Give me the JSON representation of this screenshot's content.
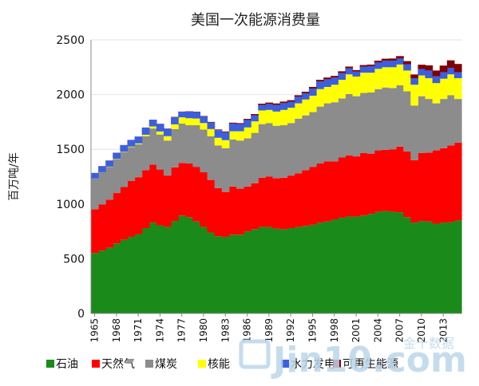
{
  "chart_data": {
    "type": "area",
    "title": "美国一次能源消费量",
    "ylabel": "百万吨/年",
    "ylim": [
      0,
      2500
    ],
    "yticks": [
      "0",
      "500",
      "1000",
      "1500",
      "2000",
      "2500"
    ],
    "x": [
      1965,
      1966,
      1967,
      1968,
      1969,
      1970,
      1971,
      1972,
      1973,
      1974,
      1975,
      1976,
      1977,
      1978,
      1979,
      1980,
      1981,
      1982,
      1983,
      1984,
      1985,
      1986,
      1987,
      1988,
      1989,
      1990,
      1991,
      1992,
      1993,
      1994,
      1995,
      1996,
      1997,
      1998,
      1999,
      2000,
      2001,
      2002,
      2003,
      2004,
      2005,
      2006,
      2007,
      2008,
      2009,
      2010,
      2011,
      2012,
      2013,
      2014,
      2015
    ],
    "xtick_labels": [
      "1965",
      "1968",
      "1971",
      "1974",
      "1977",
      "1980",
      "1983",
      "1986",
      "1989",
      "1992",
      "1995",
      "1998",
      "2001",
      "2004",
      "2007",
      "2010",
      "2013"
    ],
    "grid": true,
    "legend": "bottom",
    "stacked": true,
    "series": [
      {
        "name": "石油",
        "color": "#1a8a1a",
        "values": [
          552,
          575,
          600,
          640,
          675,
          700,
          725,
          780,
          830,
          805,
          790,
          845,
          895,
          880,
          840,
          790,
          740,
          705,
          700,
          720,
          720,
          750,
          770,
          790,
          790,
          775,
          770,
          780,
          790,
          800,
          810,
          830,
          840,
          860,
          875,
          885,
          885,
          895,
          910,
          930,
          935,
          930,
          925,
          880,
          830,
          845,
          840,
          820,
          830,
          835,
          850
        ]
      },
      {
        "name": "天然气",
        "color": "#ff0000",
        "values": [
          400,
          420,
          440,
          460,
          480,
          510,
          520,
          530,
          530,
          510,
          470,
          490,
          480,
          490,
          500,
          500,
          480,
          440,
          410,
          440,
          420,
          410,
          420,
          450,
          460,
          460,
          470,
          480,
          490,
          510,
          530,
          540,
          550,
          530,
          550,
          560,
          550,
          570,
          550,
          560,
          560,
          570,
          600,
          600,
          570,
          620,
          630,
          670,
          680,
          700,
          710
        ]
      },
      {
        "name": "煤炭",
        "color": "#8c8c8c",
        "values": [
          280,
          295,
          300,
          310,
          320,
          310,
          300,
          310,
          330,
          320,
          320,
          350,
          360,
          350,
          380,
          390,
          400,
          390,
          400,
          430,
          440,
          440,
          460,
          490,
          490,
          480,
          480,
          480,
          500,
          500,
          500,
          520,
          530,
          540,
          540,
          560,
          550,
          550,
          560,
          560,
          570,
          560,
          560,
          550,
          500,
          520,
          490,
          430,
          450,
          460,
          400
        ]
      },
      {
        "name": "核能",
        "color": "#ffff00",
        "values": [
          1,
          1,
          2,
          3,
          3,
          5,
          9,
          13,
          19,
          28,
          40,
          43,
          57,
          64,
          61,
          60,
          65,
          70,
          74,
          75,
          85,
          100,
          105,
          125,
          120,
          130,
          140,
          140,
          140,
          145,
          150,
          160,
          150,
          160,
          170,
          180,
          180,
          185,
          180,
          185,
          185,
          190,
          190,
          190,
          190,
          190,
          190,
          185,
          185,
          190,
          190
        ]
      },
      {
        "name": "水力发电",
        "color": "#3a5fe0",
        "values": [
          50,
          55,
          55,
          55,
          60,
          60,
          62,
          65,
          60,
          68,
          68,
          65,
          50,
          60,
          60,
          60,
          60,
          70,
          72,
          70,
          65,
          68,
          56,
          50,
          54,
          60,
          62,
          55,
          60,
          56,
          65,
          70,
          70,
          65,
          62,
          55,
          45,
          55,
          58,
          58,
          60,
          60,
          55,
          58,
          60,
          58,
          70,
          62,
          60,
          60,
          55
        ]
      },
      {
        "name": "可再生能源",
        "color": "#800000",
        "values": [
          1,
          1,
          1,
          1,
          1,
          1,
          1,
          1,
          2,
          2,
          2,
          3,
          3,
          3,
          3,
          4,
          5,
          6,
          7,
          8,
          9,
          10,
          11,
          12,
          13,
          14,
          14,
          14,
          14,
          15,
          15,
          15,
          16,
          16,
          16,
          16,
          14,
          15,
          16,
          17,
          18,
          20,
          22,
          28,
          34,
          40,
          47,
          53,
          60,
          68,
          75
        ]
      }
    ]
  },
  "watermark": {
    "main": "Jin10.com",
    "sub": "金十数据"
  }
}
